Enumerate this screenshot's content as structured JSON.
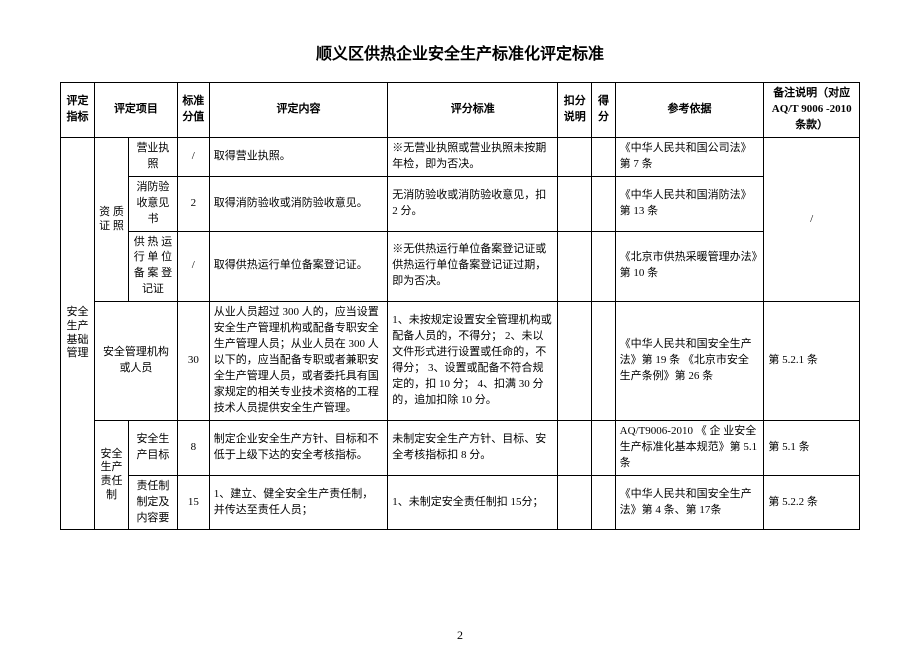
{
  "title": "顺义区供热企业安全生产标准化评定标准",
  "headers": {
    "col1": "评定指标",
    "col2": "评定项目",
    "col3": "标准分值",
    "col4": "评定内容",
    "col5": "评分标准",
    "col6": "扣分说明",
    "col7": "得分",
    "col8": "参考依据",
    "col9": "备注说明（对应 AQ/T 9006 -2010 条款）"
  },
  "cat": "安全生产基础管理",
  "grp_qual": "资 质证 照",
  "grp_safe": "安全生产责任制",
  "r1": {
    "item": "营业执照",
    "score": "/",
    "content": "取得营业执照。",
    "std": "※无营业执照或营业执照未按期年检，即为否决。",
    "ref": "《中华人民共和国公司法》第 7 条",
    "note": "/"
  },
  "r2": {
    "item": "消防验收意见书",
    "score": "2",
    "content": "取得消防验收或消防验收意见。",
    "std": "无消防验收或消防验收意见，扣 2 分。",
    "ref": "《中华人民共和国消防法》第 13 条"
  },
  "r3": {
    "item": "供 热 运行 单 位备 案 登记证",
    "score": "/",
    "content": "取得供热运行单位备案登记证。",
    "std": "※无供热运行单位备案登记证或供热运行单位备案登记证过期，即为否决。",
    "ref": "《北京市供热采暖管理办法》第 10 条"
  },
  "r4": {
    "item": "安全管理机构或人员",
    "score": "30",
    "content": "从业人员超过 300 人的，应当设置安全生产管理机构或配备专职安全生产管理人员；从业人员在 300 人以下的，应当配备专职或者兼职安全生产管理人员，或者委托具有国家规定的相关专业技术资格的工程技术人员提供安全生产管理。",
    "std": "1、未按规定设置安全管理机构或配备人员的，不得分；\n2、未以文件形式进行设置或任命的，不得分；\n3、设置或配备不符合规定的，扣 10 分；\n4、扣满 30 分的，追加扣除 10 分。",
    "ref": "《中华人民共和国安全生产法》第 19 条\n《北京市安全生产条例》第 26 条",
    "note": "第 5.2.1 条"
  },
  "r5": {
    "item": "安全生产目标",
    "score": "8",
    "content": "制定企业安全生产方针、目标和不低于上级下达的安全考核指标。",
    "std": "未制定安全生产方针、目标、安全考核指标扣 8 分。",
    "ref": "AQ/T9006-2010 《 企 业安全生产标准化基本规范》第 5.1 条",
    "note": "第 5.1 条"
  },
  "r6": {
    "item": "责任制制定及内容要",
    "score": "15",
    "content": "1、建立、健全安全生产责任制，并传达至责任人员；",
    "std": "1、未制定安全责任制扣 15分；",
    "ref": "《中华人民共和国安全生产法》第 4 条、第 17条",
    "note": "第 5.2.2 条"
  },
  "page_number": "2"
}
